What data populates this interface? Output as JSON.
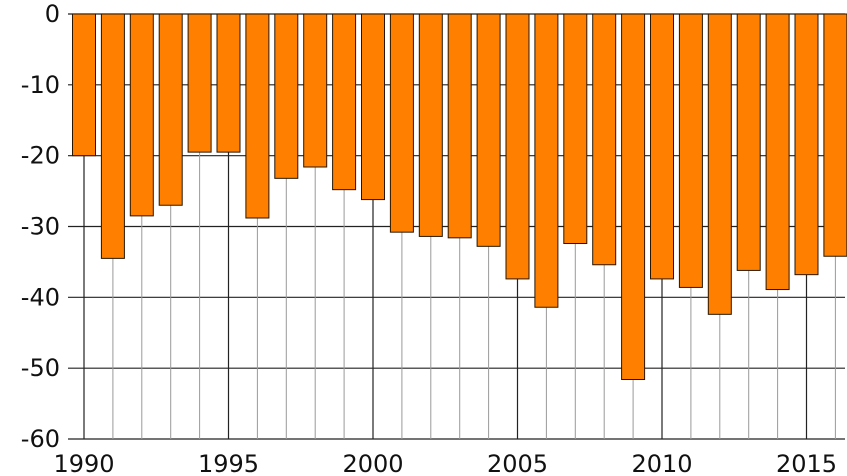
{
  "chart_data": {
    "type": "bar",
    "title": "",
    "xlabel": "",
    "ylabel": "",
    "ylim": [
      -60,
      0
    ],
    "yticks": [
      0,
      -10,
      -20,
      -30,
      -40,
      -50,
      -60
    ],
    "ytick_labels": [
      "0",
      "-10",
      "-20",
      "-30",
      "-40",
      "-50",
      "-60"
    ],
    "xtick_labels": [
      "1990",
      "1995",
      "2000",
      "2005",
      "2010",
      "2015"
    ],
    "grid": true,
    "bar_color": "#ff8000",
    "categories": [
      1990,
      1991,
      1992,
      1993,
      1994,
      1995,
      1996,
      1997,
      1998,
      1999,
      2000,
      2001,
      2002,
      2003,
      2004,
      2005,
      2006,
      2007,
      2008,
      2009,
      2010,
      2011,
      2012,
      2013,
      2014,
      2015,
      2016
    ],
    "values": [
      -20,
      -34.5,
      -28.5,
      -27,
      -19.5,
      -19.5,
      -28.8,
      -23.2,
      -21.6,
      -24.8,
      -26.2,
      -30.8,
      -31.4,
      -31.6,
      -32.8,
      -37.4,
      -41.4,
      -32.4,
      -35.4,
      -51.6,
      -37.4,
      -38.6,
      -42.4,
      -36.2,
      -38.9,
      -36.8,
      -34.2
    ]
  }
}
